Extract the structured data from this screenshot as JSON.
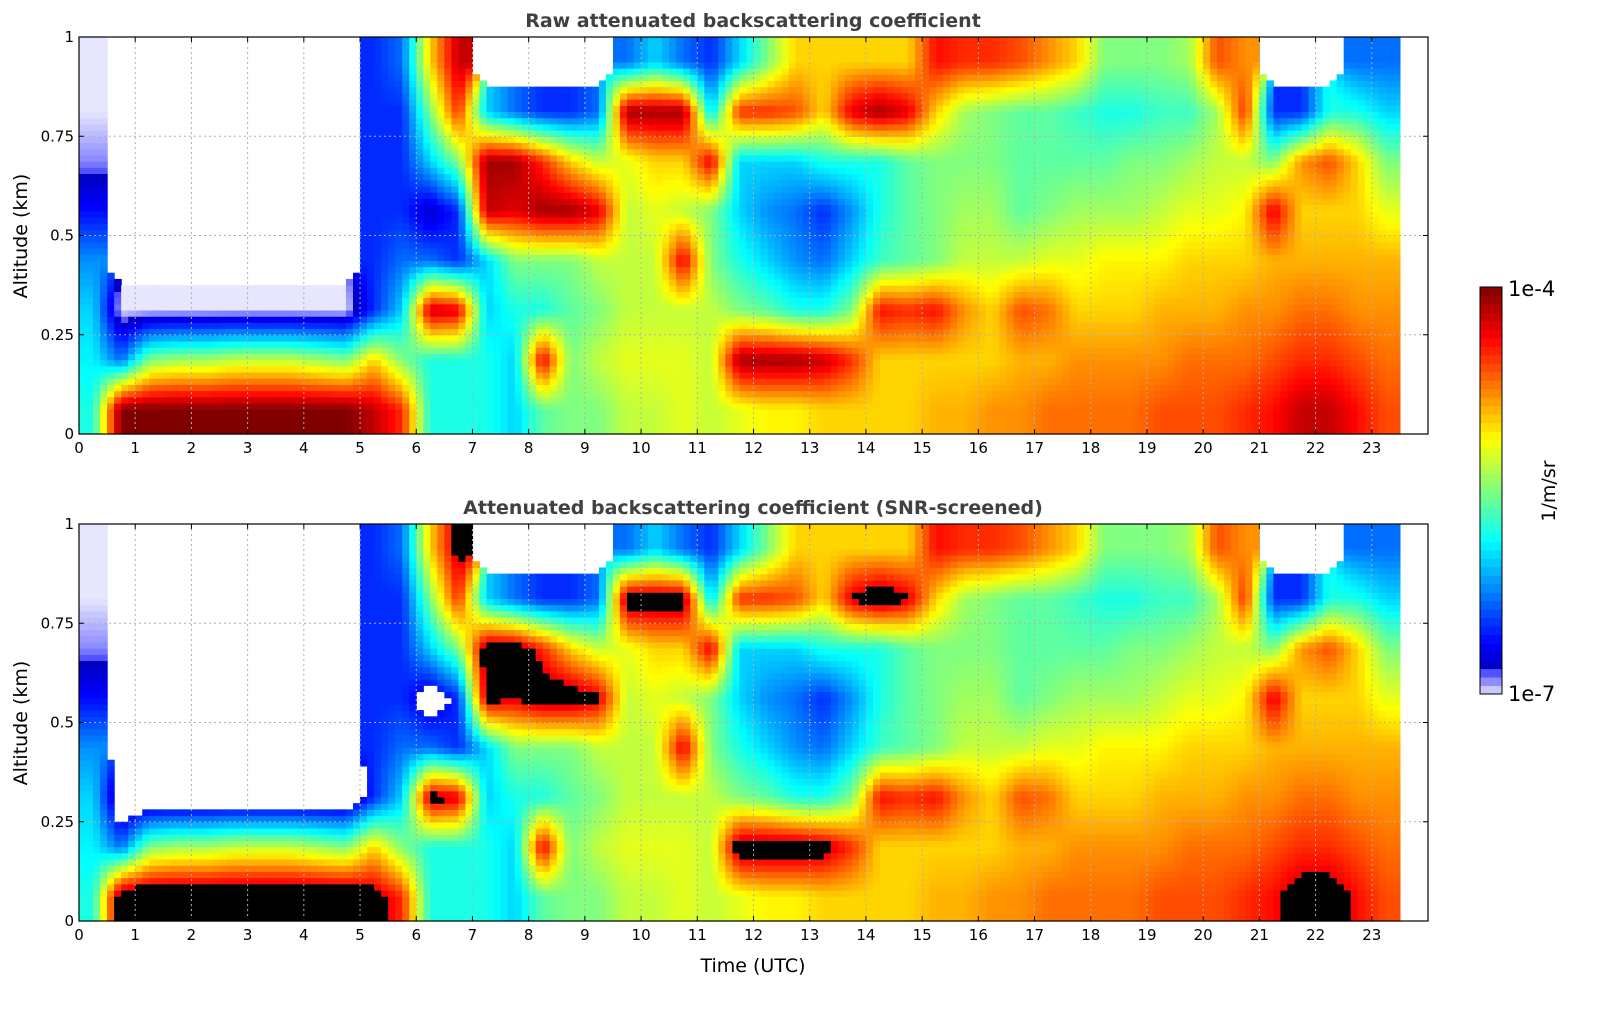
{
  "chart_data": [
    {
      "type": "heatmap",
      "title": "Raw attenuated backscattering coefficient",
      "xlabel": "",
      "ylabel": "Altitude (km)",
      "xlim": [
        0,
        24
      ],
      "ylim": [
        0,
        1
      ],
      "grid": true,
      "screened": false
    },
    {
      "type": "heatmap",
      "title": "Attenuated backscattering coefficient (SNR-screened)",
      "xlabel": "Time (UTC)",
      "ylabel": "Altitude (km)",
      "xlim": [
        0,
        24
      ],
      "ylim": [
        0,
        1
      ],
      "grid": true,
      "screened": true,
      "screening": {
        "saturated_above_log10": -4.35,
        "blank_below_log10": -6.6
      }
    }
  ],
  "shared": {
    "x_ticks": [
      "0",
      "1",
      "2",
      "3",
      "4",
      "5",
      "6",
      "7",
      "8",
      "9",
      "10",
      "11",
      "12",
      "13",
      "14",
      "15",
      "16",
      "17",
      "18",
      "19",
      "20",
      "21",
      "22",
      "23"
    ],
    "y_ticks": [
      {
        "v": 0,
        "label": "0"
      },
      {
        "v": 0.25,
        "label": "0.25"
      },
      {
        "v": 0.5,
        "label": "0.5"
      },
      {
        "v": 0.75,
        "label": "0.75"
      },
      {
        "v": 1,
        "label": "1"
      }
    ],
    "time_step_hours": 0.5,
    "altitude_step_km": 0.125,
    "colorbar": {
      "label": "1/m/sr",
      "min_label": "1e-7",
      "max_label": "1e-4",
      "log10_min": -7,
      "log10_max": -4,
      "colormap": "jet",
      "saturated_color": "#000000"
    },
    "log10_beta_columns_bottom_to_top": [
      [
        -5.8,
        -5.9,
        -6.0,
        -6.2,
        -6.6,
        -6.9,
        -7.0,
        -7.0
      ],
      [
        -4.0,
        -6.3,
        -7.0,
        null,
        null,
        null,
        null,
        null
      ],
      [
        -4.0,
        -5.5,
        -7.0,
        null,
        null,
        null,
        null,
        null
      ],
      [
        -4.0,
        -5.4,
        -7.0,
        null,
        null,
        null,
        null,
        null
      ],
      [
        -4.0,
        -5.4,
        -7.0,
        null,
        null,
        null,
        null,
        null
      ],
      [
        -4.0,
        -5.3,
        -7.0,
        null,
        null,
        null,
        null,
        null
      ],
      [
        -4.0,
        -5.3,
        -7.0,
        null,
        null,
        null,
        null,
        null
      ],
      [
        -4.0,
        -5.3,
        -7.0,
        null,
        null,
        null,
        null,
        null
      ],
      [
        -4.0,
        -5.4,
        -7.0,
        null,
        null,
        null,
        null,
        null
      ],
      [
        -4.0,
        -5.5,
        -7.0,
        null,
        null,
        null,
        null,
        null
      ],
      [
        -4.2,
        -5.0,
        -6.5,
        -6.5,
        -6.5,
        -6.5,
        -6.5,
        -6.5
      ],
      [
        -4.5,
        -5.5,
        -6.0,
        -6.3,
        -6.5,
        -6.5,
        -6.5,
        -6.3
      ],
      [
        -5.8,
        -5.8,
        -4.2,
        -6.3,
        -6.8,
        -6.0,
        -5.5,
        -5.0
      ],
      [
        -5.8,
        -5.8,
        -4.3,
        -6.5,
        -6.5,
        -5.5,
        -4.5,
        -4.2
      ],
      [
        -5.8,
        -5.8,
        -6.0,
        -6.0,
        -4.2,
        -4.1,
        -6.0,
        null
      ],
      [
        -6.0,
        -6.0,
        -5.8,
        -5.5,
        -4.3,
        -4.1,
        -6.3,
        null
      ],
      [
        -5.6,
        -4.3,
        -5.8,
        -5.5,
        -4.1,
        -4.5,
        -6.5,
        null
      ],
      [
        -5.5,
        -5.5,
        -5.6,
        -5.5,
        -4.1,
        -5.0,
        -6.5,
        null
      ],
      [
        -5.5,
        -5.3,
        -5.5,
        -5.3,
        -4.3,
        -5.3,
        -6.3,
        null
      ],
      [
        -5.3,
        -5.2,
        -5.3,
        -5.3,
        -5.3,
        -5.2,
        -4.1,
        -6.3
      ],
      [
        -5.3,
        -5.2,
        -5.3,
        -5.3,
        -5.2,
        -5.0,
        -4.1,
        -6.0
      ],
      [
        -5.2,
        -5.2,
        -5.3,
        -4.3,
        -5.3,
        -5.0,
        -4.1,
        -6.3
      ],
      [
        -5.3,
        -5.3,
        -5.3,
        -5.5,
        -5.5,
        -4.3,
        -6.0,
        -6.5
      ],
      [
        -5.2,
        -4.1,
        -5.5,
        -5.8,
        -6.0,
        -6.0,
        -4.5,
        -6.0
      ],
      [
        -5.1,
        -4.1,
        -5.6,
        -6.0,
        -6.2,
        -6.0,
        -4.5,
        -5.5
      ],
      [
        -5.1,
        -4.1,
        -5.8,
        -6.2,
        -6.3,
        -6.0,
        -4.6,
        -5.0
      ],
      [
        -5.0,
        -4.2,
        -5.8,
        -6.3,
        -6.5,
        -5.8,
        -5.0,
        -5.0
      ],
      [
        -5.0,
        -4.5,
        -5.5,
        -6.0,
        -6.2,
        -5.8,
        -4.3,
        -5.0
      ],
      [
        -5.0,
        -5.0,
        -4.4,
        -5.7,
        -5.8,
        -5.8,
        -4.1,
        -5.0
      ],
      [
        -5.0,
        -5.0,
        -4.5,
        -5.6,
        -5.6,
        -5.6,
        -4.3,
        -5.0
      ],
      [
        -4.9,
        -5.0,
        -4.4,
        -5.5,
        -5.5,
        -5.5,
        -5.0,
        -4.4
      ],
      [
        -4.9,
        -5.0,
        -4.8,
        -5.3,
        -5.4,
        -5.5,
        -5.4,
        -4.5
      ],
      [
        -4.8,
        -5.0,
        -5.0,
        -5.3,
        -5.4,
        -5.5,
        -5.5,
        -4.5
      ],
      [
        -4.8,
        -4.9,
        -4.6,
        -5.3,
        -5.6,
        -5.6,
        -5.6,
        -4.6
      ],
      [
        -4.7,
        -4.9,
        -4.7,
        -5.2,
        -5.5,
        -5.6,
        -5.6,
        -4.8
      ],
      [
        -4.7,
        -4.8,
        -5.0,
        -5.2,
        -5.4,
        -5.6,
        -5.7,
        -5.0
      ],
      [
        -4.7,
        -4.8,
        -5.0,
        -5.1,
        -5.4,
        -5.6,
        -5.8,
        -5.5
      ],
      [
        -4.7,
        -4.8,
        -5.0,
        -5.1,
        -5.4,
        -5.5,
        -5.8,
        -5.5
      ],
      [
        -4.6,
        -4.8,
        -4.9,
        -5.1,
        -5.3,
        -5.5,
        -5.7,
        -5.5
      ],
      [
        -4.6,
        -4.7,
        -4.9,
        -5.0,
        -5.2,
        -5.4,
        -5.7,
        -5.4
      ],
      [
        -4.6,
        -4.7,
        -4.9,
        -5.0,
        -5.2,
        -5.3,
        -5.4,
        -4.6
      ],
      [
        -4.5,
        -4.7,
        -4.8,
        -5.0,
        -5.1,
        -5.3,
        -4.5,
        -4.8
      ],
      [
        -4.4,
        -4.6,
        -4.8,
        -4.9,
        -4.3,
        -5.5,
        -6.5,
        null
      ],
      [
        -4.2,
        -4.5,
        -4.7,
        -4.9,
        -5.0,
        -4.8,
        -6.5,
        null
      ],
      [
        -4.2,
        -4.5,
        -4.7,
        -4.9,
        -5.0,
        -4.6,
        -5.8,
        null
      ],
      [
        -4.4,
        -4.6,
        -4.8,
        -4.9,
        -5.0,
        -5.0,
        -5.8,
        -6.3
      ],
      [
        -4.6,
        -4.7,
        -4.8,
        -4.9,
        -5.2,
        -5.5,
        -6.0,
        -6.3
      ]
    ]
  }
}
